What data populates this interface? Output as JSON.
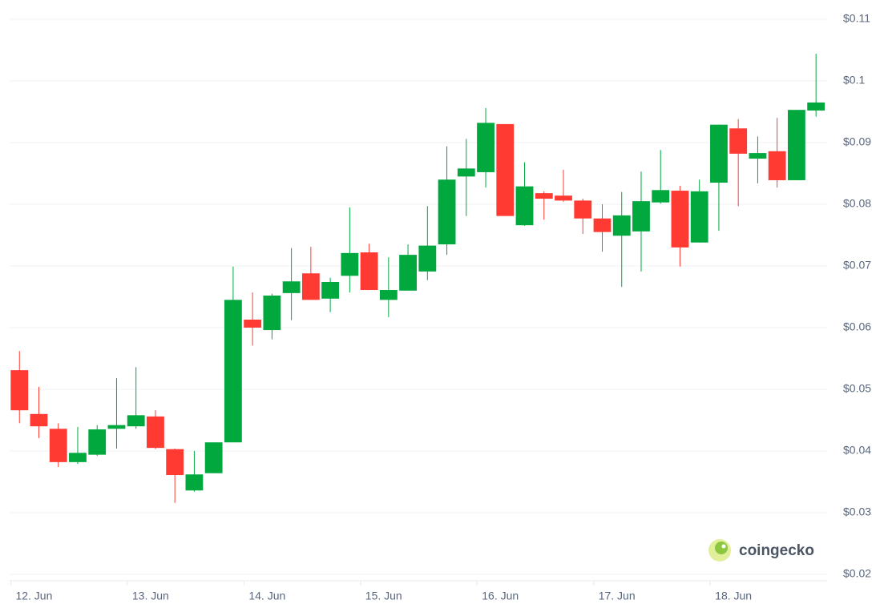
{
  "chart_data": {
    "type": "candlestick",
    "watermark": "coingecko",
    "up_color": "#00a83e",
    "down_color": "#ff3a33",
    "open": [
      0.0531,
      0.046,
      0.0436,
      0.0382,
      0.0394,
      0.0436,
      0.044,
      0.0456,
      0.0403,
      0.0336,
      0.0364,
      0.0414,
      0.0613,
      0.0596,
      0.0656,
      0.0688,
      0.0647,
      0.0684,
      0.0722,
      0.0645,
      0.066,
      0.0691,
      0.0735,
      0.0845,
      0.0852,
      0.093,
      0.0766,
      0.0818,
      0.0814,
      0.0806,
      0.0777,
      0.0749,
      0.0756,
      0.0803,
      0.0822,
      0.0738,
      0.0835,
      0.0923,
      0.0874,
      0.0886,
      0.0839,
      0.0952
    ],
    "high": [
      0.0562,
      0.0504,
      0.0445,
      0.0439,
      0.0442,
      0.0518,
      0.0536,
      0.0466,
      0.0404,
      0.04,
      0.0414,
      0.0699,
      0.0657,
      0.0655,
      0.0729,
      0.0731,
      0.0681,
      0.0795,
      0.0736,
      0.0714,
      0.0735,
      0.0797,
      0.0894,
      0.0906,
      0.0956,
      0.093,
      0.0868,
      0.0821,
      0.0856,
      0.0809,
      0.08,
      0.082,
      0.0853,
      0.0888,
      0.083,
      0.084,
      0.0929,
      0.0938,
      0.091,
      0.094,
      0.0953,
      0.1044
    ],
    "low": [
      0.0445,
      0.0421,
      0.0374,
      0.0379,
      0.0392,
      0.0404,
      0.0436,
      0.0403,
      0.0316,
      0.0334,
      0.0364,
      0.0414,
      0.0571,
      0.0581,
      0.0612,
      0.0645,
      0.0625,
      0.0657,
      0.0661,
      0.0617,
      0.066,
      0.0677,
      0.0718,
      0.0781,
      0.0827,
      0.0781,
      0.0765,
      0.0775,
      0.0804,
      0.0752,
      0.0723,
      0.0666,
      0.0691,
      0.0801,
      0.0699,
      0.0738,
      0.0757,
      0.0797,
      0.0834,
      0.0827,
      0.0839,
      0.0942
    ],
    "close": [
      0.0466,
      0.044,
      0.0382,
      0.0397,
      0.0435,
      0.0442,
      0.0458,
      0.0405,
      0.0361,
      0.0362,
      0.0414,
      0.0645,
      0.06,
      0.0652,
      0.0675,
      0.0645,
      0.0674,
      0.0721,
      0.0661,
      0.0661,
      0.0718,
      0.0733,
      0.084,
      0.0858,
      0.0932,
      0.0781,
      0.0829,
      0.0809,
      0.0806,
      0.0777,
      0.0755,
      0.0782,
      0.0805,
      0.0823,
      0.073,
      0.0821,
      0.0929,
      0.0882,
      0.0883,
      0.0839,
      0.0953,
      0.0965
    ],
    "xlim": [
      -1,
      41.6
    ],
    "xticks": [
      {
        "value": 0.75,
        "label": "12. Jun"
      },
      {
        "value": 6.75,
        "label": "13. Jun"
      },
      {
        "value": 12.75,
        "label": "14. Jun"
      },
      {
        "value": 18.75,
        "label": "15. Jun"
      },
      {
        "value": 24.75,
        "label": "16. Jun"
      },
      {
        "value": 30.75,
        "label": "17. Jun"
      },
      {
        "value": 36.75,
        "label": "18. Jun"
      }
    ],
    "ylim": [
      0.02,
      0.11
    ],
    "yticks": [
      {
        "value": 0.02,
        "label": "$0.02"
      },
      {
        "value": 0.03,
        "label": "$0.03"
      },
      {
        "value": 0.04,
        "label": "$0.04"
      },
      {
        "value": 0.05,
        "label": "$0.05"
      },
      {
        "value": 0.06,
        "label": "$0.06"
      },
      {
        "value": 0.07,
        "label": "$0.07"
      },
      {
        "value": 0.08,
        "label": "$0.08"
      },
      {
        "value": 0.09,
        "label": "$0.09"
      },
      {
        "value": 0.1,
        "label": "$0.1"
      },
      {
        "value": 0.11,
        "label": "$0.11"
      }
    ],
    "grid": true
  }
}
